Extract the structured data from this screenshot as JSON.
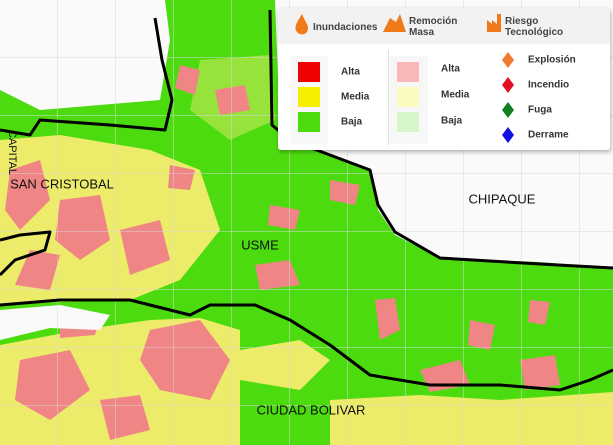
{
  "legend": {
    "headers": [
      [
        "Inundaciones"
      ],
      [
        "Remoción",
        "Masa"
      ],
      [
        "Riesgo",
        "Tecnológico"
      ]
    ],
    "flood_levels": [
      "Alta",
      "Media",
      "Baja"
    ],
    "mass_levels": [
      "Alta",
      "Media",
      "Baja"
    ],
    "tech_risks": [
      "Explosión",
      "Incendio",
      "Fuga",
      "Derrame"
    ]
  },
  "places": [
    "SAN CRISTOBAL",
    "USME",
    "CHIPAQUE",
    "CIUDAD BOLIVAR",
    "CAPITAL"
  ]
}
